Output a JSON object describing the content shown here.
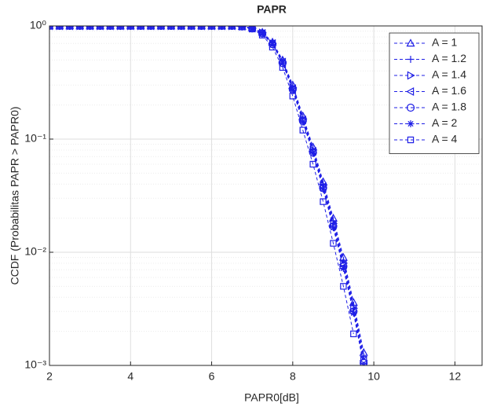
{
  "chart_data": {
    "type": "line",
    "title": "PAPR",
    "xlabel": "PAPR0[dB]",
    "ylabel": "CCDF (Probabilitas PAPR > PAPR0)",
    "yscale": "log",
    "grid": true,
    "minor_grid": true,
    "legend": "northeast",
    "xlim": [
      2,
      12.67
    ],
    "xticks": [
      2,
      4,
      6,
      8,
      10,
      12
    ],
    "ylim": [
      0.001,
      1
    ],
    "yticks": [
      {
        "value": 0.001,
        "label": "10⁻³"
      },
      {
        "value": 0.01,
        "label": "10⁻²"
      },
      {
        "value": 0.1,
        "label": "10⁻¹"
      },
      {
        "value": 1,
        "label": "10⁰"
      }
    ],
    "x": [
      2,
      2.25,
      2.5,
      2.75,
      3,
      3.25,
      3.5,
      3.75,
      4,
      4.25,
      4.5,
      4.75,
      5,
      5.25,
      5.5,
      5.75,
      6,
      6.25,
      6.5,
      6.75,
      7,
      7.25,
      7.5,
      7.75,
      8,
      8.25,
      8.5,
      8.75,
      9,
      9.25,
      9.5,
      9.75
    ],
    "series": [
      {
        "name": "A = 1",
        "color": "#1f1fe6",
        "marker": "^",
        "values": [
          1,
          1,
          1,
          1,
          1,
          1,
          1,
          1,
          1,
          1,
          1,
          1,
          1,
          1,
          1,
          1,
          1,
          1,
          1,
          0.99,
          0.96,
          0.88,
          0.72,
          0.5,
          0.3,
          0.16,
          0.085,
          0.042,
          0.02,
          0.009,
          0.0036,
          0.0013
        ]
      },
      {
        "name": "A = 1.2",
        "color": "#1f1fe6",
        "marker": "+",
        "values": [
          1,
          1,
          1,
          1,
          1,
          1,
          1,
          1,
          1,
          1,
          1,
          1,
          1,
          1,
          1,
          1,
          1,
          1,
          1,
          0.99,
          0.96,
          0.87,
          0.71,
          0.49,
          0.29,
          0.155,
          0.082,
          0.04,
          0.019,
          0.0085,
          0.0034,
          0.0012
        ]
      },
      {
        "name": "A = 1.4",
        "color": "#1f1fe6",
        "marker": ">",
        "values": [
          1,
          1,
          1,
          1,
          1,
          1,
          1,
          1,
          1,
          1,
          1,
          1,
          1,
          1,
          1,
          1,
          1,
          1,
          1,
          0.99,
          0.955,
          0.87,
          0.7,
          0.48,
          0.285,
          0.15,
          0.08,
          0.039,
          0.018,
          0.008,
          0.0032,
          0.0011
        ]
      },
      {
        "name": "A = 1.6",
        "color": "#1f1fe6",
        "marker": "<",
        "values": [
          1,
          1,
          1,
          1,
          1,
          1,
          1,
          1,
          1,
          1,
          1,
          1,
          1,
          1,
          1,
          1,
          1,
          1,
          1,
          0.99,
          0.955,
          0.86,
          0.7,
          0.48,
          0.28,
          0.148,
          0.078,
          0.038,
          0.0175,
          0.0078,
          0.0031,
          0.0011
        ]
      },
      {
        "name": "A = 1.8",
        "color": "#1f1fe6",
        "marker": "o",
        "values": [
          1,
          1,
          1,
          1,
          1,
          1,
          1,
          1,
          1,
          1,
          1,
          1,
          1,
          1,
          1,
          1,
          1,
          1,
          1,
          0.99,
          0.95,
          0.86,
          0.69,
          0.47,
          0.275,
          0.145,
          0.076,
          0.037,
          0.017,
          0.0075,
          0.003,
          0.00105
        ]
      },
      {
        "name": "A = 2",
        "color": "#1f1fe6",
        "marker": "*",
        "values": [
          1,
          1,
          1,
          1,
          1,
          1,
          1,
          1,
          1,
          1,
          1,
          1,
          1,
          1,
          1,
          1,
          1,
          1,
          1,
          0.99,
          0.95,
          0.855,
          0.69,
          0.47,
          0.27,
          0.142,
          0.075,
          0.036,
          0.0165,
          0.0072,
          0.0029,
          0.001
        ]
      },
      {
        "name": "A = 4",
        "color": "#1f1fe6",
        "marker": "s",
        "values": [
          1,
          1,
          1,
          1,
          1,
          1,
          1,
          1,
          1,
          1,
          1,
          1,
          1,
          1,
          1,
          1,
          1,
          1,
          1,
          0.985,
          0.94,
          0.83,
          0.65,
          0.43,
          0.24,
          0.12,
          0.06,
          0.028,
          0.012,
          0.005,
          0.0019,
          null
        ]
      }
    ]
  }
}
